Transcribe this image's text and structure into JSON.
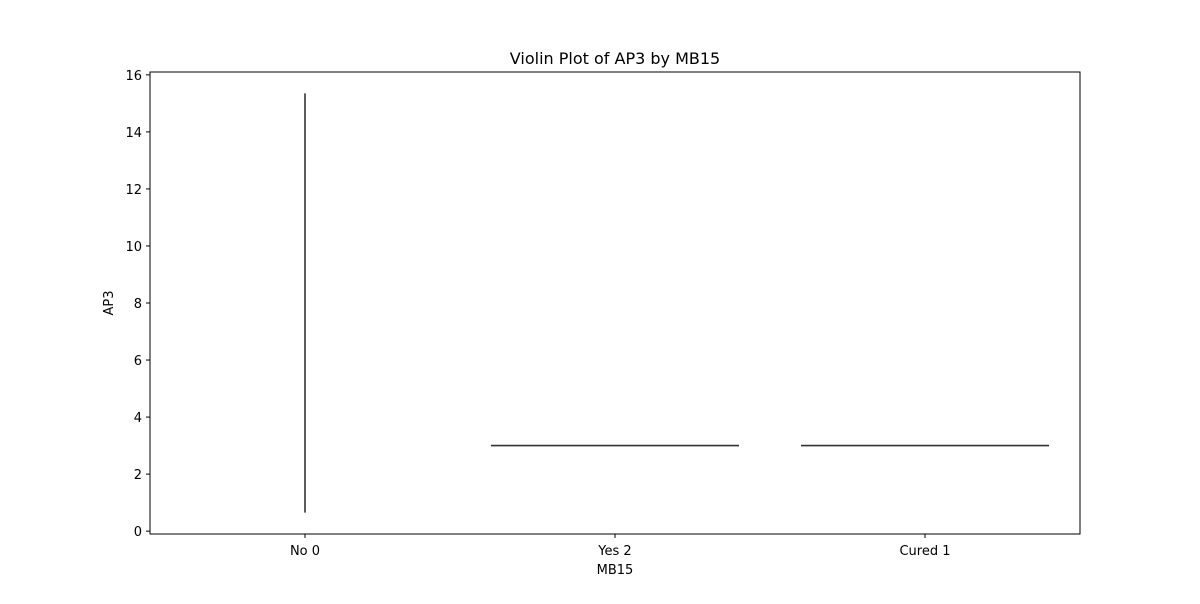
{
  "chart_data": {
    "type": "violin",
    "title": "Violin Plot of AP3 by MB15",
    "xlabel": "MB15",
    "ylabel": "AP3",
    "categories": [
      "No 0",
      "Yes 2",
      "Cured 1"
    ],
    "ylim": [
      -0.1,
      16.1
    ],
    "yticks": [
      0,
      2,
      4,
      6,
      8,
      10,
      12,
      14,
      16
    ],
    "grid": false,
    "series": [
      {
        "category": "No 0",
        "shape": "vertical-line",
        "min": 0.65,
        "max": 15.35
      },
      {
        "category": "Yes 2",
        "shape": "horizontal-line",
        "value": 3.0
      },
      {
        "category": "Cured 1",
        "shape": "horizontal-line",
        "value": 3.0
      }
    ],
    "colors": {
      "mark": "#333333",
      "axis": "#000000",
      "background": "#ffffff"
    }
  }
}
